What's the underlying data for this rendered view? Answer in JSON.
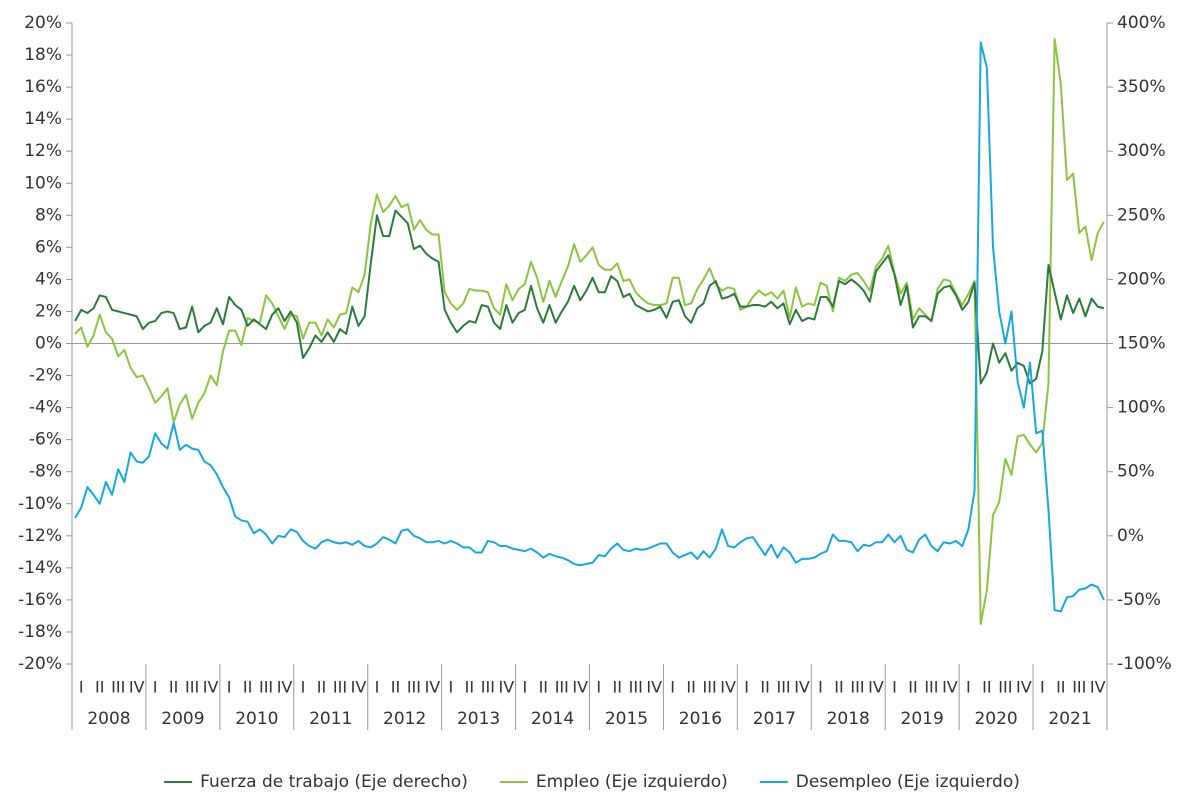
{
  "chart_data": {
    "type": "line",
    "years": [
      "2008",
      "2009",
      "2010",
      "2011",
      "2012",
      "2013",
      "2014",
      "2015",
      "2016",
      "2017",
      "2018",
      "2019",
      "2020",
      "2021"
    ],
    "quarters": [
      "I",
      "II",
      "III",
      "IV"
    ],
    "ylim": [
      -20,
      20
    ],
    "yticks": [
      {
        "value": -20,
        "label": "-20%"
      },
      {
        "value": -18,
        "label": "-18%"
      },
      {
        "value": -16,
        "label": "-16%"
      },
      {
        "value": -14,
        "label": "-14%"
      },
      {
        "value": -12,
        "label": "-12%"
      },
      {
        "value": -10,
        "label": "-10%"
      },
      {
        "value": -8,
        "label": "-8%"
      },
      {
        "value": -6,
        "label": "-6%"
      },
      {
        "value": -4,
        "label": "-4%"
      },
      {
        "value": -2,
        "label": "-2%"
      },
      {
        "value": 0,
        "label": "0%"
      },
      {
        "value": 2,
        "label": "2%"
      },
      {
        "value": 4,
        "label": "4%"
      },
      {
        "value": 6,
        "label": "6%"
      },
      {
        "value": 8,
        "label": "8%"
      },
      {
        "value": 10,
        "label": "10%"
      },
      {
        "value": 12,
        "label": "12%"
      },
      {
        "value": 14,
        "label": "14%"
      },
      {
        "value": 16,
        "label": "16%"
      },
      {
        "value": 18,
        "label": "18%"
      },
      {
        "value": 20,
        "label": "20%"
      }
    ],
    "y2lim": [
      -100,
      400
    ],
    "y2ticks": [
      {
        "value": -100,
        "label": "-100%"
      },
      {
        "value": -50,
        "label": "-50%"
      },
      {
        "value": 0,
        "label": "0%"
      },
      {
        "value": 50,
        "label": "50%"
      },
      {
        "value": 100,
        "label": "100%"
      },
      {
        "value": 150,
        "label": "150%"
      },
      {
        "value": 200,
        "label": "200%"
      },
      {
        "value": 250,
        "label": "250%"
      },
      {
        "value": 300,
        "label": "300%"
      },
      {
        "value": 350,
        "label": "350%"
      },
      {
        "value": 400,
        "label": "400%"
      }
    ],
    "legend": "bottom",
    "series": [
      {
        "name": "Fuerza de trabajo (Eje derecho)",
        "color": "#2e7a3c",
        "values": [
          1.4,
          2.1,
          1.9,
          2.2,
          3.0,
          2.9,
          2.1,
          2.0,
          1.9,
          1.8,
          1.7,
          0.9,
          1.3,
          1.4,
          1.9,
          2.0,
          1.9,
          0.9,
          1.0,
          2.3,
          0.7,
          1.1,
          1.3,
          2.2,
          1.2,
          2.9,
          2.4,
          2.1,
          1.1,
          1.5,
          1.2,
          0.9,
          1.8,
          2.2,
          1.4,
          2.0,
          1.3,
          -0.9,
          -0.3,
          0.5,
          0.1,
          0.7,
          0.1,
          0.9,
          0.6,
          2.3,
          1.1,
          1.7,
          5.0,
          8.0,
          6.7,
          6.7,
          8.3,
          7.9,
          7.5,
          5.9,
          6.1,
          5.6,
          5.3,
          5.1,
          2.1,
          1.3,
          0.7,
          1.1,
          1.4,
          1.3,
          2.4,
          2.3,
          1.3,
          0.9,
          2.4,
          1.3,
          1.9,
          2.1,
          3.6,
          2.2,
          1.3,
          2.4,
          1.3,
          2.0,
          2.6,
          3.6,
          2.7,
          3.3,
          4.1,
          3.2,
          3.2,
          4.2,
          3.9,
          2.9,
          3.1,
          2.4,
          2.2,
          2.0,
          2.1,
          2.3,
          1.6,
          2.6,
          2.7,
          1.7,
          1.3,
          2.2,
          2.5,
          3.6,
          3.9,
          2.8,
          2.9,
          3.1,
          2.3,
          2.3,
          2.4,
          2.4,
          2.3,
          2.6,
          2.2,
          2.5,
          1.2,
          2.1,
          1.4,
          1.6,
          1.5,
          2.9,
          2.9,
          2.3,
          3.9,
          3.7,
          4.0,
          3.7,
          3.3,
          2.6,
          4.5,
          5.0,
          5.5,
          4.3,
          2.4,
          3.6,
          1.0,
          1.7,
          1.7,
          1.4,
          3.1,
          3.5,
          3.6,
          3.0,
          2.1,
          2.6,
          3.8,
          -2.5,
          -1.8,
          0.0,
          -1.2,
          -0.6,
          -1.7,
          -1.2,
          -1.4,
          -2.5,
          -2.2,
          -0.5,
          4.9,
          3.2,
          1.5,
          3.0,
          1.9,
          2.8,
          1.7,
          2.8,
          2.3,
          2.2
        ]
      },
      {
        "name": "Empleo (Eje izquierdo)",
        "color": "#8dc540",
        "values": [
          0.6,
          1.0,
          -0.2,
          0.5,
          1.8,
          0.7,
          0.3,
          -0.8,
          -0.4,
          -1.5,
          -2.1,
          -2.0,
          -2.8,
          -3.7,
          -3.3,
          -2.8,
          -4.9,
          -3.8,
          -3.2,
          -4.7,
          -3.7,
          -3.1,
          -2.0,
          -2.6,
          -0.5,
          0.8,
          0.8,
          -0.1,
          1.6,
          1.4,
          1.3,
          3.0,
          2.5,
          1.7,
          0.9,
          1.8,
          1.7,
          0.3,
          1.3,
          1.3,
          0.5,
          1.5,
          1.0,
          1.8,
          1.9,
          3.5,
          3.2,
          4.3,
          7.5,
          9.3,
          8.2,
          8.6,
          9.2,
          8.5,
          8.7,
          7.1,
          7.7,
          7.1,
          6.8,
          6.8,
          3.2,
          2.5,
          2.1,
          2.5,
          3.4,
          3.3,
          3.3,
          3.2,
          2.2,
          1.8,
          3.7,
          2.7,
          3.4,
          3.7,
          5.1,
          4.1,
          2.6,
          3.9,
          2.9,
          3.9,
          4.8,
          6.2,
          5.1,
          5.5,
          6.0,
          4.9,
          4.6,
          4.6,
          5.0,
          3.9,
          4.0,
          3.2,
          2.8,
          2.5,
          2.4,
          2.4,
          2.5,
          4.1,
          4.1,
          2.4,
          2.5,
          3.4,
          4.0,
          4.7,
          3.7,
          3.3,
          3.5,
          3.4,
          2.1,
          2.3,
          2.9,
          3.3,
          3.0,
          3.2,
          2.8,
          3.3,
          1.6,
          3.5,
          2.3,
          2.5,
          2.4,
          3.8,
          3.6,
          2.0,
          4.1,
          3.9,
          4.3,
          4.4,
          3.9,
          3.3,
          4.8,
          5.3,
          6.1,
          4.4,
          3.1,
          3.8,
          1.5,
          2.2,
          1.8,
          1.4,
          3.4,
          4.0,
          3.9,
          3.1,
          2.4,
          3.1,
          3.9,
          -17.5,
          -15.4,
          -10.7,
          -9.9,
          -7.2,
          -8.2,
          -5.8,
          -5.7,
          -6.3,
          -6.8,
          -6.2,
          -2.5,
          19.0,
          16.2,
          10.2,
          10.6,
          6.9,
          7.3,
          5.2,
          6.9,
          7.6
        ]
      },
      {
        "name": "Desempleo (Eje izquierdo)",
        "color": "#17a8e0",
        "axis": "y2",
        "values": [
          14,
          22,
          38,
          32,
          25,
          42,
          32,
          52,
          42,
          65,
          58,
          57,
          62,
          80,
          72,
          68,
          88,
          67,
          71,
          68,
          67,
          58,
          55,
          48,
          38,
          30,
          15,
          12,
          11,
          2,
          5,
          1,
          -6,
          0,
          -1,
          5,
          3,
          -4,
          -8,
          -10,
          -5,
          -3,
          -5,
          -6,
          -5,
          -7,
          -4,
          -8,
          -9,
          -6,
          -1,
          -3,
          -6,
          4,
          5,
          0,
          -2,
          -5,
          -5,
          -4,
          -6,
          -4,
          -6,
          -9,
          -9,
          -13,
          -13,
          -4,
          -5,
          -8,
          -8,
          -10,
          -11,
          -12,
          -10,
          -13,
          -17,
          -14,
          -16,
          -17,
          -19,
          -22,
          -23,
          -22,
          -21,
          -15,
          -16,
          -10,
          -6,
          -11,
          -12,
          -10,
          -11,
          -10,
          -8,
          -6,
          -6,
          -13,
          -17,
          -15,
          -13,
          -18,
          -12,
          -17,
          -10,
          5,
          -8,
          -9,
          -5,
          -2,
          -1,
          -8,
          -15,
          -7,
          -17,
          -9,
          -13,
          -21,
          -18,
          -18,
          -17,
          -14,
          -12,
          1,
          -4,
          -4,
          -5,
          -12,
          -7,
          -8,
          -5,
          -5,
          1,
          -5,
          0,
          -11,
          -13,
          -3,
          1,
          -8,
          -12,
          -5,
          -6,
          -4,
          -8,
          5,
          35,
          385,
          365,
          225,
          175,
          150,
          175,
          120,
          100,
          135,
          80,
          82,
          20,
          -58,
          -59,
          -48,
          -47,
          -42,
          -41,
          -38,
          -40,
          -50
        ]
      }
    ]
  }
}
